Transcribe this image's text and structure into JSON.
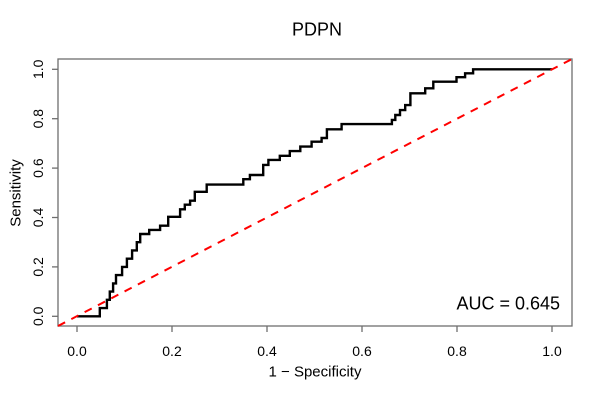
{
  "figure": {
    "background_color": "#FFFFFF",
    "text_color": "#000000",
    "axis_box_color": "#6e6e6e"
  },
  "chart_data": {
    "type": "line",
    "subtype": "roc-step-curve",
    "title": "PDPN",
    "xlabel": "1 − Specificity",
    "ylabel": "Sensitivity",
    "xlim": [
      0,
      1
    ],
    "ylim": [
      0,
      1
    ],
    "grid": false,
    "legend": "none",
    "x_tick_labels": [
      "0.0",
      "0.2",
      "0.4",
      "0.6",
      "0.8",
      "1.0"
    ],
    "y_tick_labels": [
      "0.0",
      "0.2",
      "0.4",
      "0.6",
      "0.8",
      "1.0"
    ],
    "auc": 0.645,
    "annotation": "AUC = 0.645",
    "annotation_position": "bottom-right-inside",
    "series": [
      {
        "name": "ROC curve",
        "type": "step",
        "color": "#000000",
        "line_width": 2.4,
        "start": [
          0,
          0
        ],
        "end": [
          1,
          1
        ],
        "steps": [
          [
            0.048,
            0.033
          ],
          [
            0.063,
            0.067
          ],
          [
            0.069,
            0.1
          ],
          [
            0.076,
            0.133
          ],
          [
            0.082,
            0.167
          ],
          [
            0.095,
            0.2
          ],
          [
            0.105,
            0.233
          ],
          [
            0.116,
            0.267
          ],
          [
            0.126,
            0.3
          ],
          [
            0.133,
            0.333
          ],
          [
            0.152,
            0.35
          ],
          [
            0.175,
            0.367
          ],
          [
            0.192,
            0.403
          ],
          [
            0.217,
            0.433
          ],
          [
            0.227,
            0.452
          ],
          [
            0.238,
            0.468
          ],
          [
            0.248,
            0.504
          ],
          [
            0.273,
            0.533
          ],
          [
            0.35,
            0.555
          ],
          [
            0.364,
            0.572
          ],
          [
            0.392,
            0.613
          ],
          [
            0.403,
            0.633
          ],
          [
            0.427,
            0.65
          ],
          [
            0.448,
            0.669
          ],
          [
            0.47,
            0.687
          ],
          [
            0.494,
            0.707
          ],
          [
            0.515,
            0.722
          ],
          [
            0.526,
            0.757
          ],
          [
            0.557,
            0.778
          ],
          [
            0.663,
            0.795
          ],
          [
            0.67,
            0.815
          ],
          [
            0.68,
            0.835
          ],
          [
            0.691,
            0.855
          ],
          [
            0.702,
            0.903
          ],
          [
            0.733,
            0.923
          ],
          [
            0.75,
            0.95
          ],
          [
            0.799,
            0.968
          ],
          [
            0.817,
            0.984
          ],
          [
            0.834,
            1.0
          ]
        ]
      },
      {
        "name": "Chance diagonal",
        "type": "line",
        "style": "dashed",
        "color": "#FF0000",
        "line_width": 2,
        "dash_pattern": "8 7",
        "points": [
          [
            0,
            0
          ],
          [
            1,
            1
          ]
        ]
      }
    ]
  }
}
